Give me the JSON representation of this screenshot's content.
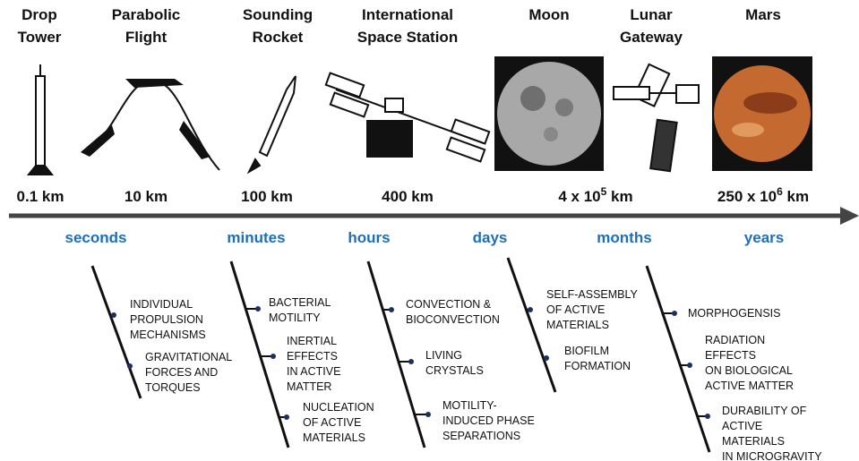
{
  "platforms": [
    {
      "name": [
        "Drop",
        "Tower"
      ],
      "distance": "0.1 km"
    },
    {
      "name": [
        "Parabolic",
        "Flight"
      ],
      "distance": "10 km"
    },
    {
      "name": [
        "Sounding",
        "Rocket"
      ],
      "distance": "100 km"
    },
    {
      "name": [
        "International",
        "Space Station"
      ],
      "distance": "400 km"
    },
    {
      "name": [
        "Moon"
      ],
      "distance": {
        "base": "4 x 10",
        "exp": "5",
        "unit": " km"
      }
    },
    {
      "name": [
        "Lunar",
        "Gateway"
      ]
    },
    {
      "name": [
        "Mars"
      ],
      "distance": {
        "base": "250 x 10",
        "exp": "6",
        "unit": " km"
      }
    }
  ],
  "timescales": [
    "seconds",
    "minutes",
    "hours",
    "days",
    "months",
    "years"
  ],
  "branches": [
    {
      "items": [
        [
          "INDIVIDUAL",
          "PROPULSION",
          "MECHANISMS"
        ],
        [
          "GRAVITATIONAL",
          "FORCES AND",
          "TORQUES"
        ]
      ]
    },
    {
      "items": [
        [
          "BACTERIAL",
          "MOTILITY"
        ],
        [
          "INERTIAL",
          "EFFECTS",
          "IN ACTIVE",
          "MATTER"
        ],
        [
          "NUCLEATION",
          "OF ACTIVE",
          "MATERIALS"
        ]
      ]
    },
    {
      "items": [
        [
          "CONVECTION &",
          "BIOCONVECTION"
        ],
        [
          "LIVING",
          "CRYSTALS"
        ],
        [
          "MOTILITY-",
          "INDUCED PHASE",
          "SEPARATIONS"
        ]
      ]
    },
    {
      "items": [
        [
          "SELF-ASSEMBLY",
          "OF ACTIVE",
          "MATERIALS"
        ],
        [
          "BIOFILM",
          "FORMATION"
        ]
      ]
    },
    {
      "items": [
        [
          "MORPHOGENSIS"
        ],
        [
          "RADIATION",
          "EFFECTS",
          "ON BIOLOGICAL",
          "ACTIVE MATTER"
        ],
        [
          "DURABILITY OF",
          "ACTIVE",
          "MATERIALS",
          "IN MICROGRAVITY"
        ]
      ]
    }
  ]
}
